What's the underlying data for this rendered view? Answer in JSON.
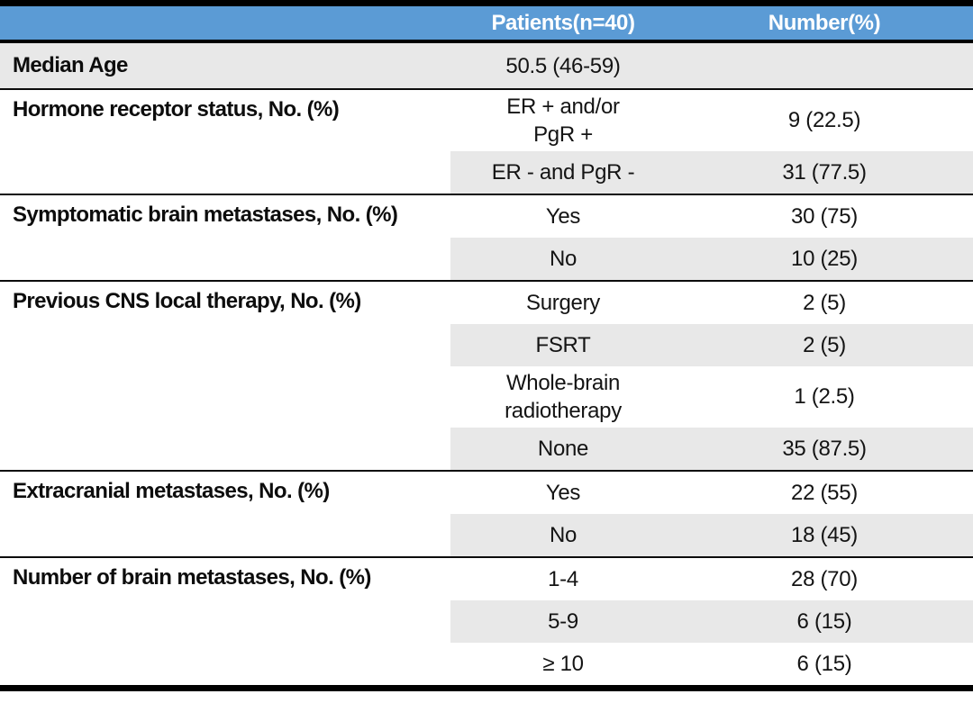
{
  "colors": {
    "header_bg": "#5B9BD5",
    "header_text": "#FFFFFF",
    "row_shade": "#E8E8E8",
    "rule": "#000000",
    "text": "#141414"
  },
  "header": {
    "col_patients": "Patients(n=40)",
    "col_number": "Number(%)"
  },
  "sections": [
    {
      "label": "Median Age",
      "full_width_shade": true,
      "rows": [
        {
          "value": "50.5 (46-59)",
          "number": "",
          "shaded": false
        }
      ]
    },
    {
      "label": "Hormone receptor status, No. (%)",
      "full_width_shade": false,
      "rows": [
        {
          "value": "ER + and/or\nPgR +",
          "number": "9 (22.5)",
          "shaded": false
        },
        {
          "value": "ER - and PgR -",
          "number": "31 (77.5)",
          "shaded": true
        }
      ]
    },
    {
      "label": "Symptomatic brain metastases, No. (%)",
      "full_width_shade": false,
      "rows": [
        {
          "value": "Yes",
          "number": "30 (75)",
          "shaded": false
        },
        {
          "value": "No",
          "number": "10 (25)",
          "shaded": true
        }
      ]
    },
    {
      "label": "Previous CNS local therapy, No. (%)",
      "full_width_shade": false,
      "rows": [
        {
          "value": "Surgery",
          "number": "2 (5)",
          "shaded": false
        },
        {
          "value": "FSRT",
          "number": "2 (5)",
          "shaded": true
        },
        {
          "value": "Whole-brain\nradiotherapy",
          "number": "1 (2.5)",
          "shaded": false
        },
        {
          "value": "None",
          "number": "35 (87.5)",
          "shaded": true
        }
      ]
    },
    {
      "label": "Extracranial metastases, No. (%)",
      "full_width_shade": false,
      "rows": [
        {
          "value": "Yes",
          "number": "22 (55)",
          "shaded": false
        },
        {
          "value": "No",
          "number": "18 (45)",
          "shaded": true
        }
      ]
    },
    {
      "label": "Number of brain metastases, No. (%)",
      "full_width_shade": false,
      "rows": [
        {
          "value": "1-4",
          "number": "28 (70)",
          "shaded": false
        },
        {
          "value": "5-9",
          "number": "6 (15)",
          "shaded": true
        },
        {
          "value": "≥ 10",
          "number": "6 (15)",
          "shaded": false
        }
      ]
    }
  ]
}
